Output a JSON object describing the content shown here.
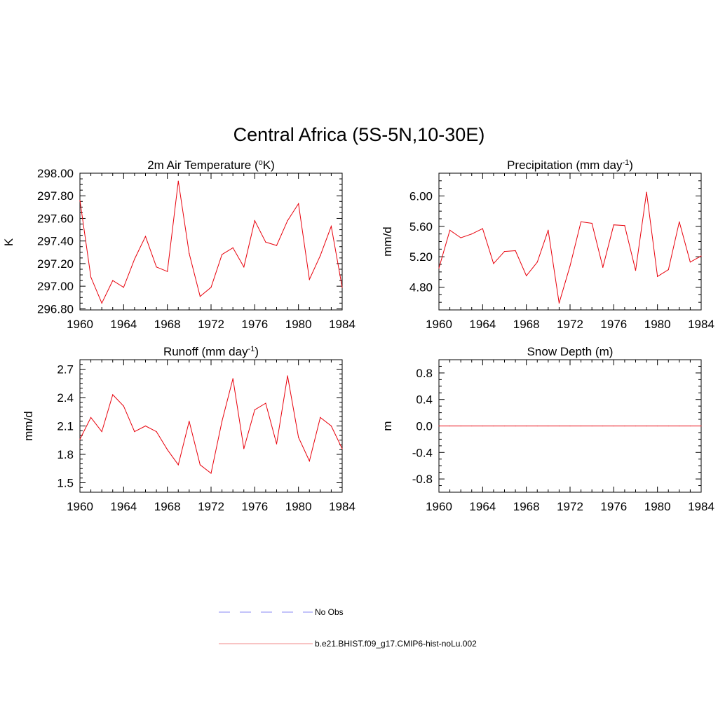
{
  "figure": {
    "title": "Central Africa (5S-5N,10-30E)",
    "line_color": "#e8000b"
  },
  "legend": {
    "items": [
      {
        "label": "No Obs",
        "color": "#8a8af5",
        "dashed": true
      },
      {
        "label": "b.e21.BHIST.f09_g17.CMIP6-hist-noLu.002",
        "color": "#f08a8a",
        "dashed": false
      }
    ]
  },
  "chart_data": [
    {
      "type": "line",
      "title": "2m Air Temperature (",
      "title_sup": "o",
      "title_tail": "K)",
      "ylabel": "K",
      "x_tick_labels": [
        "1960",
        "1964",
        "1968",
        "1972",
        "1976",
        "1980",
        "1984"
      ],
      "x_ticks": [
        1960,
        1964,
        1968,
        1972,
        1976,
        1980,
        1984
      ],
      "y_tick_labels": [
        "298.00",
        "297.80",
        "297.60",
        "297.40",
        "297.20",
        "297.00",
        "296.80"
      ],
      "y_ticks": [
        298.0,
        297.8,
        297.6,
        297.4,
        297.2,
        297.0,
        296.8
      ],
      "xlim": [
        1960,
        1984
      ],
      "ylim": [
        296.79,
        298.0
      ],
      "y_minor": 0.05,
      "x": [
        1960,
        1961,
        1962,
        1963,
        1964,
        1965,
        1966,
        1967,
        1968,
        1969,
        1970,
        1971,
        1972,
        1973,
        1974,
        1975,
        1976,
        1977,
        1978,
        1979,
        1980,
        1981,
        1982,
        1983,
        1984
      ],
      "series": [
        {
          "name": "b.e21.BHIST.f09_g17.CMIP6-hist-noLu.002",
          "values": [
            297.76,
            297.08,
            296.85,
            297.05,
            296.99,
            297.24,
            297.44,
            297.17,
            297.13,
            297.93,
            297.29,
            296.91,
            296.99,
            297.28,
            297.34,
            297.17,
            297.58,
            297.39,
            297.36,
            297.58,
            297.73,
            297.06,
            297.27,
            297.53,
            296.99
          ]
        }
      ]
    },
    {
      "type": "line",
      "title": "Precipitation (mm day",
      "title_sup": "-1",
      "title_tail": ")",
      "ylabel": "mm/d",
      "x_tick_labels": [
        "1960",
        "1964",
        "1968",
        "1972",
        "1976",
        "1980",
        "1984"
      ],
      "x_ticks": [
        1960,
        1964,
        1968,
        1972,
        1976,
        1980,
        1984
      ],
      "y_tick_labels": [
        "6.00",
        "5.60",
        "5.20",
        "4.80"
      ],
      "y_ticks": [
        6.0,
        5.6,
        5.2,
        4.8
      ],
      "xlim": [
        1960,
        1984
      ],
      "ylim": [
        4.5,
        6.3
      ],
      "y_minor": 0.1,
      "x": [
        1960,
        1961,
        1962,
        1963,
        1964,
        1965,
        1966,
        1967,
        1968,
        1969,
        1970,
        1971,
        1972,
        1973,
        1974,
        1975,
        1976,
        1977,
        1978,
        1979,
        1980,
        1981,
        1982,
        1983,
        1984
      ],
      "series": [
        {
          "name": "b.e21.BHIST.f09_g17.CMIP6-hist-noLu.002",
          "values": [
            5.05,
            5.55,
            5.45,
            5.5,
            5.57,
            5.11,
            5.27,
            5.28,
            4.95,
            5.13,
            5.55,
            4.59,
            5.08,
            5.66,
            5.64,
            5.06,
            5.62,
            5.61,
            5.02,
            6.05,
            4.94,
            5.03,
            5.66,
            5.13,
            5.21
          ]
        }
      ]
    },
    {
      "type": "line",
      "title": "Runoff (mm day",
      "title_sup": "-1",
      "title_tail": ")",
      "ylabel": "mm/d",
      "x_tick_labels": [
        "1960",
        "1964",
        "1968",
        "1972",
        "1976",
        "1980",
        "1984"
      ],
      "x_ticks": [
        1960,
        1964,
        1968,
        1972,
        1976,
        1980,
        1984
      ],
      "y_tick_labels": [
        "2.7",
        "2.4",
        "2.1",
        "1.8",
        "1.5"
      ],
      "y_ticks": [
        2.7,
        2.4,
        2.1,
        1.8,
        1.5
      ],
      "xlim": [
        1960,
        1984
      ],
      "ylim": [
        1.4,
        2.8
      ],
      "y_minor": 0.05,
      "x": [
        1960,
        1961,
        1962,
        1963,
        1964,
        1965,
        1966,
        1967,
        1968,
        1969,
        1970,
        1971,
        1972,
        1973,
        1974,
        1975,
        1976,
        1977,
        1978,
        1979,
        1980,
        1981,
        1982,
        1983,
        1984
      ],
      "series": [
        {
          "name": "b.e21.BHIST.f09_g17.CMIP6-hist-noLu.002",
          "values": [
            1.96,
            2.19,
            2.04,
            2.43,
            2.31,
            2.04,
            2.1,
            2.04,
            1.85,
            1.69,
            2.15,
            1.69,
            1.6,
            2.15,
            2.6,
            1.86,
            2.27,
            2.34,
            1.91,
            2.63,
            1.98,
            1.73,
            2.19,
            2.1,
            1.86
          ]
        }
      ]
    },
    {
      "type": "line",
      "title": "Snow Depth (m)",
      "title_sup": "",
      "title_tail": "",
      "ylabel": "m",
      "x_tick_labels": [
        "1960",
        "1964",
        "1968",
        "1972",
        "1976",
        "1980",
        "1984"
      ],
      "x_ticks": [
        1960,
        1964,
        1968,
        1972,
        1976,
        1980,
        1984
      ],
      "y_tick_labels": [
        "0.8",
        "0.4",
        "0.0",
        "-0.4",
        "-0.8"
      ],
      "y_ticks": [
        0.8,
        0.4,
        0.0,
        -0.4,
        -0.8
      ],
      "xlim": [
        1960,
        1984
      ],
      "ylim": [
        -1.0,
        1.0
      ],
      "y_minor": 0.1,
      "x": [
        1960,
        1961,
        1962,
        1963,
        1964,
        1965,
        1966,
        1967,
        1968,
        1969,
        1970,
        1971,
        1972,
        1973,
        1974,
        1975,
        1976,
        1977,
        1978,
        1979,
        1980,
        1981,
        1982,
        1983,
        1984
      ],
      "series": [
        {
          "name": "b.e21.BHIST.f09_g17.CMIP6-hist-noLu.002",
          "values": [
            0,
            0,
            0,
            0,
            0,
            0,
            0,
            0,
            0,
            0,
            0,
            0,
            0,
            0,
            0,
            0,
            0,
            0,
            0,
            0,
            0,
            0,
            0,
            0,
            0
          ]
        }
      ]
    }
  ]
}
